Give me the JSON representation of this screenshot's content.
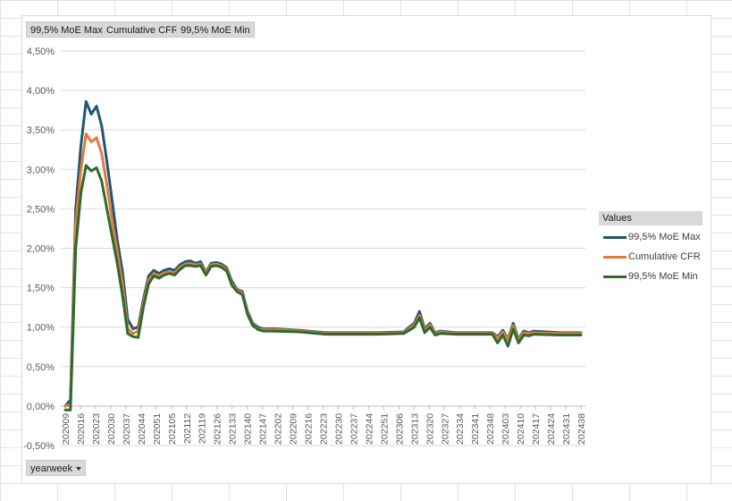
{
  "field_buttons": [
    "99,5% MoE Max",
    "Cumulative CFR",
    "99,5% MoE Min"
  ],
  "axis_field_button": "yearweek",
  "legend": {
    "title": "Values",
    "items": [
      {
        "name": "99,5% MoE Max",
        "color": "#1f5773"
      },
      {
        "name": "Cumulative CFR",
        "color": "#e07a3f"
      },
      {
        "name": "99,5% MoE Min",
        "color": "#2d6a2d"
      }
    ]
  },
  "chart_data": {
    "type": "line",
    "x_tick_labels": [
      "202009",
      "202016",
      "202023",
      "202030",
      "202037",
      "202044",
      "202051",
      "202105",
      "202112",
      "202119",
      "202126",
      "202133",
      "202140",
      "202147",
      "202202",
      "202209",
      "202216",
      "202223",
      "202230",
      "202237",
      "202244",
      "202251",
      "202306",
      "202313",
      "202320",
      "202327",
      "202334",
      "202341",
      "202348",
      "202403",
      "202410",
      "202417",
      "202424",
      "202431",
      "202438"
    ],
    "y_tick_labels": [
      "-0,50%",
      "0,00%",
      "0,50%",
      "1,00%",
      "1,50%",
      "2,00%",
      "2,50%",
      "3,00%",
      "3,50%",
      "4,00%",
      "4,50%"
    ],
    "ylim": [
      -0.5,
      4.5
    ],
    "grid": true,
    "legend_position": "right",
    "series": [
      {
        "name": "99,5% MoE Max",
        "color": "#1f5773",
        "values": [
          [
            0,
            0
          ],
          [
            1,
            0.08
          ],
          [
            2,
            2.5
          ],
          [
            3,
            3.3
          ],
          [
            4,
            3.86
          ],
          [
            5,
            3.7
          ],
          [
            6,
            3.8
          ],
          [
            7,
            3.55
          ],
          [
            8,
            3.1
          ],
          [
            9,
            2.6
          ],
          [
            10,
            2.1
          ],
          [
            11,
            1.7
          ],
          [
            12,
            1.1
          ],
          [
            13,
            0.98
          ],
          [
            14,
            1.0
          ],
          [
            15,
            1.35
          ],
          [
            16,
            1.65
          ],
          [
            17,
            1.72
          ],
          [
            18,
            1.68
          ],
          [
            19,
            1.72
          ],
          [
            20,
            1.74
          ],
          [
            21,
            1.72
          ],
          [
            22,
            1.79
          ],
          [
            23,
            1.83
          ],
          [
            24,
            1.84
          ],
          [
            25,
            1.81
          ],
          [
            26,
            1.83
          ],
          [
            27,
            1.7
          ],
          [
            28,
            1.81
          ],
          [
            29,
            1.82
          ],
          [
            30,
            1.8
          ],
          [
            31,
            1.75
          ],
          [
            32,
            1.58
          ],
          [
            33,
            1.48
          ],
          [
            34,
            1.45
          ],
          [
            35,
            1.2
          ],
          [
            36,
            1.05
          ],
          [
            37,
            1.0
          ],
          [
            38,
            0.98
          ],
          [
            40,
            0.98
          ],
          [
            45,
            0.96
          ],
          [
            50,
            0.93
          ],
          [
            55,
            0.93
          ],
          [
            60,
            0.93
          ],
          [
            65,
            0.94
          ],
          [
            66,
            1.0
          ],
          [
            67,
            1.05
          ],
          [
            68,
            1.2
          ],
          [
            69,
            0.98
          ],
          [
            70,
            1.05
          ],
          [
            71,
            0.93
          ],
          [
            72,
            0.95
          ],
          [
            75,
            0.93
          ],
          [
            80,
            0.93
          ],
          [
            82,
            0.93
          ],
          [
            83,
            0.88
          ],
          [
            84,
            0.96
          ],
          [
            85,
            0.85
          ],
          [
            86,
            1.05
          ],
          [
            87,
            0.85
          ],
          [
            88,
            0.95
          ],
          [
            89,
            0.93
          ],
          [
            90,
            0.95
          ],
          [
            95,
            0.93
          ],
          [
            99,
            0.93
          ]
        ]
      },
      {
        "name": "Cumulative CFR",
        "color": "#e07a3f",
        "values": [
          [
            0,
            0
          ],
          [
            1,
            0.02
          ],
          [
            2,
            2.3
          ],
          [
            3,
            3.0
          ],
          [
            4,
            3.45
          ],
          [
            5,
            3.35
          ],
          [
            6,
            3.4
          ],
          [
            7,
            3.2
          ],
          [
            8,
            2.8
          ],
          [
            9,
            2.35
          ],
          [
            10,
            1.95
          ],
          [
            11,
            1.55
          ],
          [
            12,
            0.98
          ],
          [
            13,
            0.92
          ],
          [
            14,
            0.95
          ],
          [
            15,
            1.3
          ],
          [
            16,
            1.6
          ],
          [
            17,
            1.68
          ],
          [
            18,
            1.65
          ],
          [
            19,
            1.69
          ],
          [
            20,
            1.7
          ],
          [
            21,
            1.69
          ],
          [
            22,
            1.76
          ],
          [
            23,
            1.8
          ],
          [
            24,
            1.81
          ],
          [
            25,
            1.79
          ],
          [
            26,
            1.8
          ],
          [
            27,
            1.69
          ],
          [
            28,
            1.79
          ],
          [
            29,
            1.8
          ],
          [
            30,
            1.78
          ],
          [
            31,
            1.73
          ],
          [
            32,
            1.55
          ],
          [
            33,
            1.47
          ],
          [
            34,
            1.43
          ],
          [
            35,
            1.18
          ],
          [
            36,
            1.03
          ],
          [
            37,
            0.98
          ],
          [
            38,
            0.97
          ],
          [
            40,
            0.97
          ],
          [
            45,
            0.95
          ],
          [
            50,
            0.92
          ],
          [
            55,
            0.92
          ],
          [
            60,
            0.92
          ],
          [
            65,
            0.93
          ],
          [
            66,
            0.98
          ],
          [
            67,
            1.03
          ],
          [
            68,
            1.15
          ],
          [
            69,
            0.96
          ],
          [
            70,
            1.03
          ],
          [
            71,
            0.92
          ],
          [
            72,
            0.94
          ],
          [
            75,
            0.92
          ],
          [
            80,
            0.92
          ],
          [
            82,
            0.92
          ],
          [
            83,
            0.86
          ],
          [
            84,
            0.94
          ],
          [
            85,
            0.84
          ],
          [
            86,
            1.02
          ],
          [
            87,
            0.84
          ],
          [
            88,
            0.93
          ],
          [
            89,
            0.92
          ],
          [
            90,
            0.93
          ],
          [
            95,
            0.92
          ],
          [
            99,
            0.92
          ]
        ]
      },
      {
        "name": "99,5% MoE Min",
        "color": "#2d6a2d",
        "values": [
          [
            0,
            -0.05
          ],
          [
            1,
            -0.05
          ],
          [
            2,
            2.0
          ],
          [
            3,
            2.7
          ],
          [
            4,
            3.05
          ],
          [
            5,
            2.98
          ],
          [
            6,
            3.02
          ],
          [
            7,
            2.85
          ],
          [
            8,
            2.5
          ],
          [
            9,
            2.15
          ],
          [
            10,
            1.8
          ],
          [
            11,
            1.4
          ],
          [
            12,
            0.92
          ],
          [
            13,
            0.88
          ],
          [
            14,
            0.87
          ],
          [
            15,
            1.25
          ],
          [
            16,
            1.55
          ],
          [
            17,
            1.65
          ],
          [
            18,
            1.62
          ],
          [
            19,
            1.66
          ],
          [
            20,
            1.68
          ],
          [
            21,
            1.66
          ],
          [
            22,
            1.73
          ],
          [
            23,
            1.78
          ],
          [
            24,
            1.78
          ],
          [
            25,
            1.77
          ],
          [
            26,
            1.78
          ],
          [
            27,
            1.66
          ],
          [
            28,
            1.77
          ],
          [
            29,
            1.78
          ],
          [
            30,
            1.76
          ],
          [
            31,
            1.71
          ],
          [
            32,
            1.53
          ],
          [
            33,
            1.45
          ],
          [
            34,
            1.41
          ],
          [
            35,
            1.16
          ],
          [
            36,
            1.02
          ],
          [
            37,
            0.97
          ],
          [
            38,
            0.95
          ],
          [
            40,
            0.95
          ],
          [
            45,
            0.94
          ],
          [
            50,
            0.91
          ],
          [
            55,
            0.91
          ],
          [
            60,
            0.91
          ],
          [
            65,
            0.92
          ],
          [
            66,
            0.96
          ],
          [
            67,
            1.0
          ],
          [
            68,
            1.12
          ],
          [
            69,
            0.93
          ],
          [
            70,
            1.0
          ],
          [
            71,
            0.9
          ],
          [
            72,
            0.92
          ],
          [
            75,
            0.91
          ],
          [
            80,
            0.91
          ],
          [
            82,
            0.91
          ],
          [
            83,
            0.8
          ],
          [
            84,
            0.9
          ],
          [
            85,
            0.76
          ],
          [
            86,
            0.98
          ],
          [
            87,
            0.8
          ],
          [
            88,
            0.9
          ],
          [
            89,
            0.89
          ],
          [
            90,
            0.91
          ],
          [
            95,
            0.9
          ],
          [
            99,
            0.9
          ]
        ]
      }
    ]
  }
}
